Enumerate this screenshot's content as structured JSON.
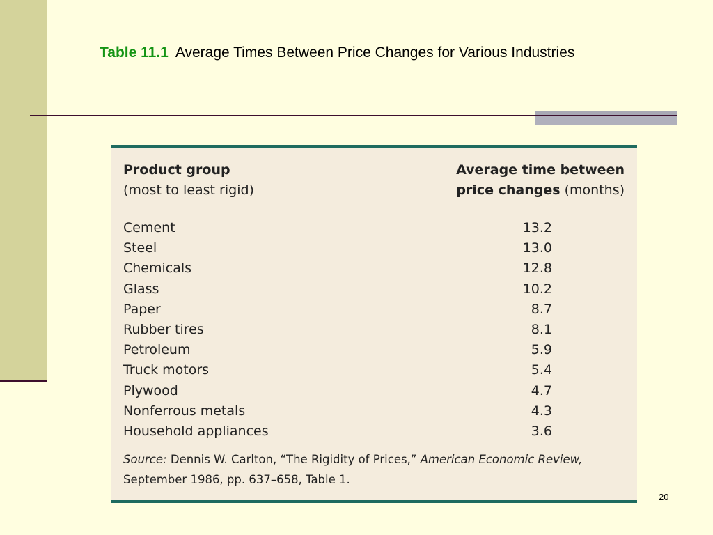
{
  "title": {
    "label": "Table 11.1",
    "text": "Average Times Between Price Changes for Various Industries"
  },
  "table": {
    "header": {
      "left_bold": "Product group",
      "left_sub": "(most to least rigid)",
      "right_line1": "Average time between",
      "right_line2_bold": "price changes",
      "right_line2_rest": "(months)"
    },
    "rows": [
      {
        "name": "Cement",
        "value": "13.2"
      },
      {
        "name": "Steel",
        "value": "13.0"
      },
      {
        "name": "Chemicals",
        "value": "12.8"
      },
      {
        "name": "Glass",
        "value": "10.2"
      },
      {
        "name": "Paper",
        "value": "8.7"
      },
      {
        "name": "Rubber tires",
        "value": "8.1"
      },
      {
        "name": "Petroleum",
        "value": "5.9"
      },
      {
        "name": "Truck motors",
        "value": "5.4"
      },
      {
        "name": "Plywood",
        "value": "4.7"
      },
      {
        "name": "Nonferrous metals",
        "value": "4.3"
      },
      {
        "name": "Household appliances",
        "value": "3.6"
      }
    ],
    "source": {
      "label": "Source:",
      "text1": "Dennis W. Carlton, “The Rigidity of Prices,”",
      "journal": "American Economic Review,",
      "text2": "September 1986, pp. 637–658, Table 1."
    }
  },
  "page_number": "20",
  "colors": {
    "background": "#fffee0",
    "side_band": "#d4d39b",
    "title_label": "#149414",
    "table_background": "#f4ecdd",
    "table_border": "#1e6b5f",
    "rule": "#3d0f2e"
  }
}
